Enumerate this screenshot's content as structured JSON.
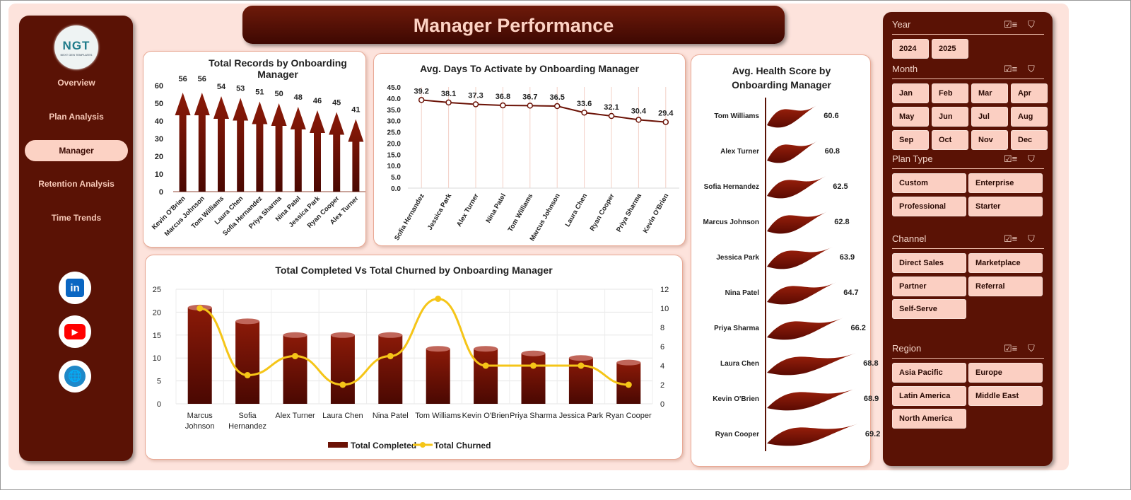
{
  "title": "Manager Performance",
  "logo": {
    "text": "NGT",
    "subtext": "NEXT GEN TEMPLATES"
  },
  "nav": [
    {
      "label": "Overview"
    },
    {
      "label": "Plan Analysis"
    },
    {
      "label": "Manager",
      "active": true
    },
    {
      "label": "Retention Analysis"
    },
    {
      "label": "Time Trends"
    }
  ],
  "social": [
    {
      "icon": "linkedin-icon",
      "label": "in",
      "color": "#0a66c2"
    },
    {
      "icon": "youtube-icon",
      "label": "▶",
      "color": "#ff0000"
    },
    {
      "icon": "globe-icon",
      "label": "🌐",
      "color": "#1e88c8"
    }
  ],
  "colors": {
    "accent": "#5a1205",
    "bar": "#7a1505",
    "line": "#f5c518",
    "panel_bg": "#fde3dc",
    "button": "#fbcfc2"
  },
  "slicers": [
    {
      "title": "Year",
      "items": [
        "2024",
        "2025"
      ],
      "cols": 4
    },
    {
      "title": "Month",
      "items": [
        "Jan",
        "Feb",
        "Mar",
        "Apr",
        "May",
        "Jun",
        "Jul",
        "Aug",
        "Sep",
        "Oct",
        "Nov",
        "Dec"
      ],
      "cols": 4
    },
    {
      "title": "Plan Type",
      "items": [
        "Custom",
        "Enterprise",
        "Professional",
        "Starter"
      ],
      "cols": 2
    },
    {
      "title": "Channel",
      "items": [
        "Direct Sales",
        "Marketplace",
        "Partner",
        "Referral",
        "Self-Serve"
      ],
      "cols": 2
    },
    {
      "title": "Region",
      "items": [
        "Asia Pacific",
        "Europe",
        "Latin America",
        "Middle East",
        "North America"
      ],
      "cols": 2
    }
  ],
  "chart_data": [
    {
      "type": "bar",
      "title": "Total Records by Onboarding Manager",
      "categories": [
        "Kevin O'Brien",
        "Marcus Johnson",
        "Tom Williams",
        "Laura Chen",
        "Sofia Hernandez",
        "Priya Sharma",
        "Nina Patel",
        "Jessica Park",
        "Ryan Cooper",
        "Alex Turner"
      ],
      "values": [
        56,
        56,
        54,
        53,
        51,
        50,
        48,
        46,
        45,
        41
      ],
      "ylim": [
        0,
        60
      ],
      "yticks": [
        0,
        10,
        20,
        30,
        40,
        50,
        60
      ],
      "grid": false
    },
    {
      "type": "line",
      "title": "Avg. Days To Activate by Onboarding Manager",
      "categories": [
        "Sofia Hernandez",
        "Jessica Park",
        "Alex Turner",
        "Nina Patel",
        "Tom Williams",
        "Marcus Johnson",
        "Laura Chen",
        "Ryan Cooper",
        "Priya Sharma",
        "Kevin O'Brien"
      ],
      "values": [
        39.2,
        38.1,
        37.3,
        36.8,
        36.7,
        36.5,
        33.6,
        32.1,
        30.4,
        29.4
      ],
      "ylim": [
        0,
        45
      ],
      "yticks": [
        "0.0",
        "5.0",
        "10.0",
        "15.0",
        "20.0",
        "25.0",
        "30.0",
        "35.0",
        "40.0",
        "45.0"
      ],
      "grid": true
    },
    {
      "type": "bar",
      "title": "Total Completed Vs Total Churned  by Onboarding Manager",
      "categories": [
        "Marcus Johnson",
        "Sofia Hernandez",
        "Alex Turner",
        "Laura Chen",
        "Nina Patel",
        "Tom Williams",
        "Kevin O'Brien",
        "Priya Sharma",
        "Jessica Park",
        "Ryan Cooper"
      ],
      "series": [
        {
          "name": "Total Completed",
          "type": "bar",
          "axis": "left",
          "values": [
            21,
            18,
            15,
            15,
            15,
            12,
            12,
            11,
            10,
            9
          ]
        },
        {
          "name": "Total Churned",
          "type": "line",
          "axis": "right",
          "values": [
            10,
            3,
            5,
            2,
            5,
            11,
            4,
            4,
            4,
            2
          ]
        }
      ],
      "ylim": [
        0,
        25
      ],
      "yticks": [
        0,
        5,
        10,
        15,
        20,
        25
      ],
      "y2lim": [
        0,
        12
      ],
      "y2ticks": [
        0,
        2,
        4,
        6,
        8,
        10,
        12
      ],
      "legend": "bottom",
      "grid": true
    },
    {
      "type": "bar",
      "orientation": "horizontal",
      "title": "Avg. Health Score by Onboarding Manager",
      "categories": [
        "Tom Williams",
        "Alex Turner",
        "Sofia Hernandez",
        "Marcus Johnson",
        "Jessica Park",
        "Nina Patel",
        "Priya Sharma",
        "Laura Chen",
        "Kevin O'Brien",
        "Ryan Cooper"
      ],
      "values": [
        60.6,
        60.8,
        62.5,
        62.8,
        63.9,
        64.7,
        66.2,
        68.8,
        68.9,
        69.2
      ],
      "xlim": [
        50,
        72
      ]
    }
  ]
}
